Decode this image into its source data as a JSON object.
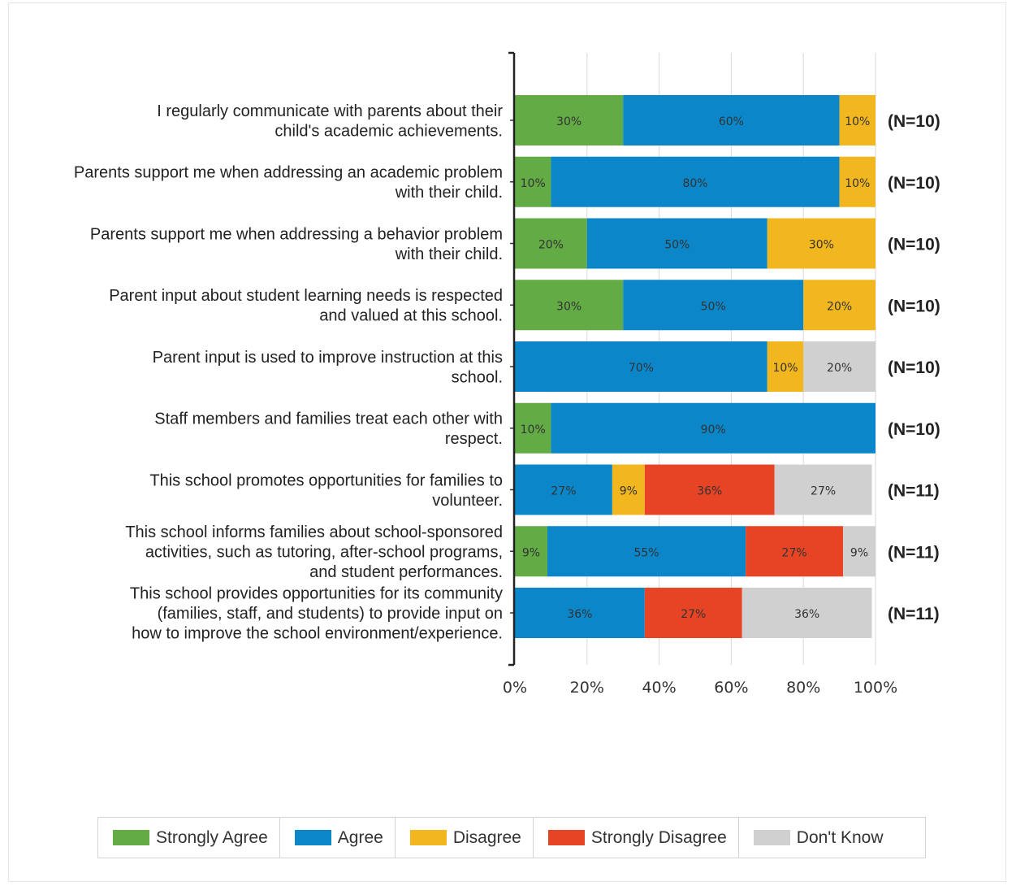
{
  "chart_data": {
    "type": "bar",
    "orientation": "horizontal",
    "stacked": true,
    "categories": [
      "I regularly communicate with parents about their child's academic achievements.",
      "Parents support me when addressing an academic problem with their child.",
      "Parents support me when addressing a behavior problem with their child.",
      "Parent input about student learning needs is respected and valued at this school.",
      "Parent input is used to improve instruction at this school.",
      "Staff members and families treat each other with respect.",
      "This school promotes opportunities for families to volunteer.",
      "This school informs families about school-sponsored activities, such as tutoring, after-school programs, and student performances.",
      "This school provides opportunities for its community (families, staff, and students) to provide input on how to improve the school environment/experience."
    ],
    "category_lines": [
      [
        "I regularly communicate with parents about their",
        "child's academic achievements."
      ],
      [
        "Parents support me when addressing an academic problem",
        "with their child."
      ],
      [
        "Parents support me when addressing a behavior problem",
        "with their child."
      ],
      [
        "Parent input about student learning needs is respected",
        "and valued at this school."
      ],
      [
        "Parent input is used to improve instruction at this",
        "school."
      ],
      [
        "Staff members and families treat each other with",
        "respect."
      ],
      [
        "This school promotes opportunities for families to",
        "volunteer."
      ],
      [
        "This school informs families about school-sponsored",
        "activities, such as tutoring, after-school programs,",
        "and student performances."
      ],
      [
        "This school provides opportunities for its community",
        "(families, staff, and students) to provide input on",
        "how to improve the school environment/experience."
      ]
    ],
    "series": [
      {
        "name": "Strongly Agree",
        "color": "#62ab45",
        "values": [
          30,
          10,
          20,
          30,
          0,
          10,
          0,
          9,
          0
        ],
        "labels": [
          "30%",
          "10%",
          "20%",
          "30%",
          "",
          "10%",
          "",
          "9%",
          ""
        ]
      },
      {
        "name": "Agree",
        "color": "#0a86c9",
        "values": [
          60,
          80,
          50,
          50,
          70,
          90,
          27,
          55,
          36
        ],
        "labels": [
          "60%",
          "80%",
          "50%",
          "50%",
          "70%",
          "90%",
          "27%",
          "55%",
          "36%"
        ]
      },
      {
        "name": "Disagree",
        "color": "#f2b71f",
        "values": [
          10,
          10,
          30,
          20,
          10,
          0,
          9,
          0,
          0
        ],
        "labels": [
          "10%",
          "10%",
          "30%",
          "20%",
          "10%",
          "",
          "9%",
          "",
          ""
        ]
      },
      {
        "name": "Strongly Disagree",
        "color": "#e64425",
        "values": [
          0,
          0,
          0,
          0,
          0,
          0,
          36,
          27,
          27
        ],
        "labels": [
          "",
          "",
          "",
          "",
          "",
          "",
          "36%",
          "27%",
          "27%"
        ]
      },
      {
        "name": "Don't Know",
        "color": "#d0d0d0",
        "values": [
          0,
          0,
          0,
          0,
          20,
          0,
          27,
          9,
          36
        ],
        "labels": [
          "",
          "",
          "",
          "",
          "20%",
          "",
          "27%",
          "9%",
          "36%"
        ]
      }
    ],
    "n_labels": [
      "(N=10)",
      "(N=10)",
      "(N=10)",
      "(N=10)",
      "(N=10)",
      "(N=10)",
      "(N=11)",
      "(N=11)",
      "(N=11)"
    ],
    "x_ticks": [
      "0%",
      "20%",
      "40%",
      "60%",
      "80%",
      "100%"
    ],
    "x_tick_values": [
      0,
      20,
      40,
      60,
      80,
      100
    ],
    "xlim": [
      0,
      100
    ],
    "grid": true,
    "legend_position": "bottom",
    "title": "",
    "xlabel": "",
    "ylabel": ""
  }
}
